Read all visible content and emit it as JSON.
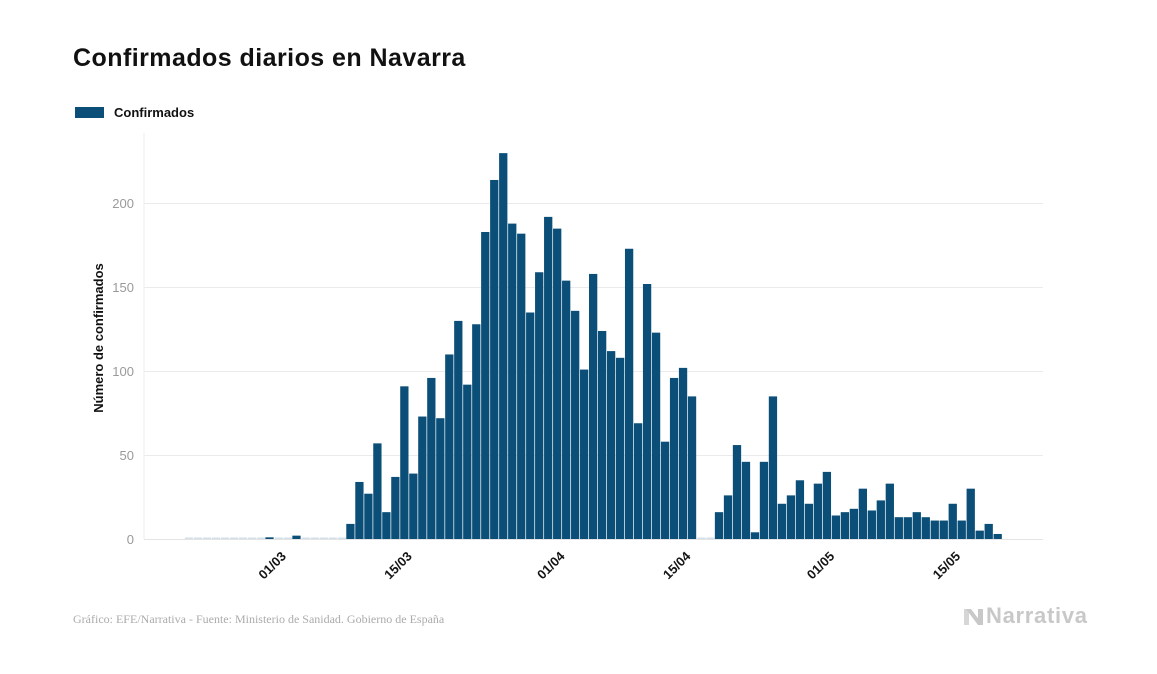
{
  "footer": {
    "source": "Gráfico: EFE/Narrativa - Fuente: Ministerio de Sanidad. Gobierno de España",
    "logo_text": "Narrativa",
    "logo_icon": "narrativa-n-icon",
    "logo_color": "#c8c8c8"
  },
  "chart_data": {
    "type": "bar",
    "title": "Confirmados diarios en Navarra",
    "xlabel": "",
    "ylabel": "Número de confirmados",
    "ylim": [
      0,
      242
    ],
    "yticks": [
      "0",
      "50",
      "100",
      "150",
      "200"
    ],
    "grid": true,
    "legend_position": "top-left",
    "xtick_labels": [
      "01/03",
      "15/03",
      "01/04",
      "15/04",
      "01/05",
      "15/05"
    ],
    "categories": [
      "19/02",
      "20/02",
      "21/02",
      "22/02",
      "23/02",
      "24/02",
      "25/02",
      "26/02",
      "27/02",
      "28/02",
      "29/02",
      "01/03",
      "02/03",
      "03/03",
      "04/03",
      "05/03",
      "06/03",
      "07/03",
      "08/03",
      "09/03",
      "10/03",
      "11/03",
      "12/03",
      "13/03",
      "14/03",
      "15/03",
      "16/03",
      "17/03",
      "18/03",
      "19/03",
      "20/03",
      "21/03",
      "22/03",
      "23/03",
      "24/03",
      "25/03",
      "26/03",
      "27/03",
      "28/03",
      "29/03",
      "30/03",
      "31/03",
      "01/04",
      "02/04",
      "03/04",
      "04/04",
      "05/04",
      "06/04",
      "07/04",
      "08/04",
      "09/04",
      "10/04",
      "11/04",
      "12/04",
      "13/04",
      "14/04",
      "15/04",
      "16/04",
      "17/04",
      "18/04",
      "19/04",
      "20/04",
      "21/04",
      "22/04",
      "23/04",
      "24/04",
      "25/04",
      "26/04",
      "27/04",
      "28/04",
      "29/04",
      "30/04",
      "01/05",
      "02/05",
      "03/05",
      "04/05",
      "05/05",
      "06/05",
      "07/05",
      "08/05",
      "09/05",
      "10/05",
      "11/05",
      "12/05",
      "13/05",
      "14/05",
      "15/05",
      "16/05",
      "17/05",
      "18/05",
      "19/05"
    ],
    "series": [
      {
        "name": "Confirmados",
        "color": "#0b4f78",
        "values": [
          0,
          0,
          0,
          0,
          0,
          0,
          0,
          0,
          0,
          1,
          0,
          0,
          2,
          0,
          0,
          0,
          0,
          0,
          9,
          34,
          27,
          57,
          16,
          37,
          91,
          39,
          73,
          96,
          72,
          110,
          130,
          92,
          128,
          183,
          214,
          230,
          188,
          182,
          135,
          159,
          192,
          185,
          154,
          136,
          101,
          158,
          124,
          112,
          108,
          173,
          69,
          152,
          123,
          58,
          96,
          102,
          85,
          0,
          0,
          16,
          26,
          56,
          46,
          4,
          46,
          85,
          21,
          26,
          35,
          21,
          33,
          40,
          14,
          16,
          18,
          30,
          17,
          23,
          33,
          13,
          13,
          16,
          13,
          11,
          11,
          21,
          11,
          30,
          5,
          9,
          3
        ]
      }
    ]
  }
}
